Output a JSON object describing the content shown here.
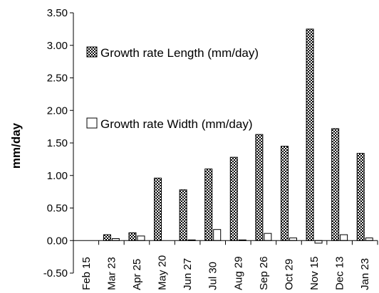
{
  "chart_data": {
    "type": "bar",
    "title": "",
    "xlabel": "",
    "ylabel": "mm/day",
    "ylim": [
      -0.5,
      3.5
    ],
    "yticks": [
      "-0.50",
      "0.00",
      "0.50",
      "1.00",
      "1.50",
      "2.00",
      "2.50",
      "3.00",
      "3.50"
    ],
    "ytick_values": [
      -0.5,
      0,
      0.5,
      1,
      1.5,
      2,
      2.5,
      3,
      3.5
    ],
    "grid": false,
    "legend_position": "top-left inside plot",
    "categories": [
      "Feb 15",
      "Mar 23",
      "Apr 25",
      "May 20",
      "Jun 27",
      "Jul 30",
      "Aug 29",
      "Sep 26",
      "Oct 29",
      "Nov 15",
      "Dec 13",
      "Jan 23"
    ],
    "series": [
      {
        "name": "Growth rate Length (mm/day)",
        "fill": "checkered",
        "values": [
          0,
          0.09,
          0.12,
          0.96,
          0.78,
          1.1,
          1.28,
          1.63,
          1.45,
          3.25,
          1.72,
          1.34
        ]
      },
      {
        "name": "Growth rate Width (mm/day)",
        "fill": "white",
        "values": [
          0,
          0.03,
          0.07,
          0,
          0.01,
          0.17,
          0.01,
          0.11,
          0.04,
          -0.04,
          0.09,
          0.04
        ]
      }
    ]
  }
}
